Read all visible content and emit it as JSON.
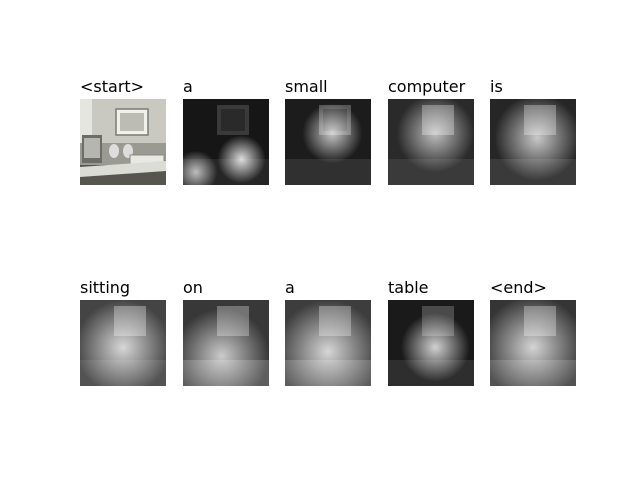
{
  "caption": {
    "tokens": [
      {
        "word": "<start>",
        "view": "original"
      },
      {
        "word": "a",
        "view": "attention"
      },
      {
        "word": "small",
        "view": "attention"
      },
      {
        "word": "computer",
        "view": "attention"
      },
      {
        "word": "is",
        "view": "attention"
      },
      {
        "word": "sitting",
        "view": "attention"
      },
      {
        "word": "on",
        "view": "attention"
      },
      {
        "word": "a",
        "view": "attention"
      },
      {
        "word": "table",
        "view": "attention"
      },
      {
        "word": "<end>",
        "view": "attention"
      }
    ]
  }
}
